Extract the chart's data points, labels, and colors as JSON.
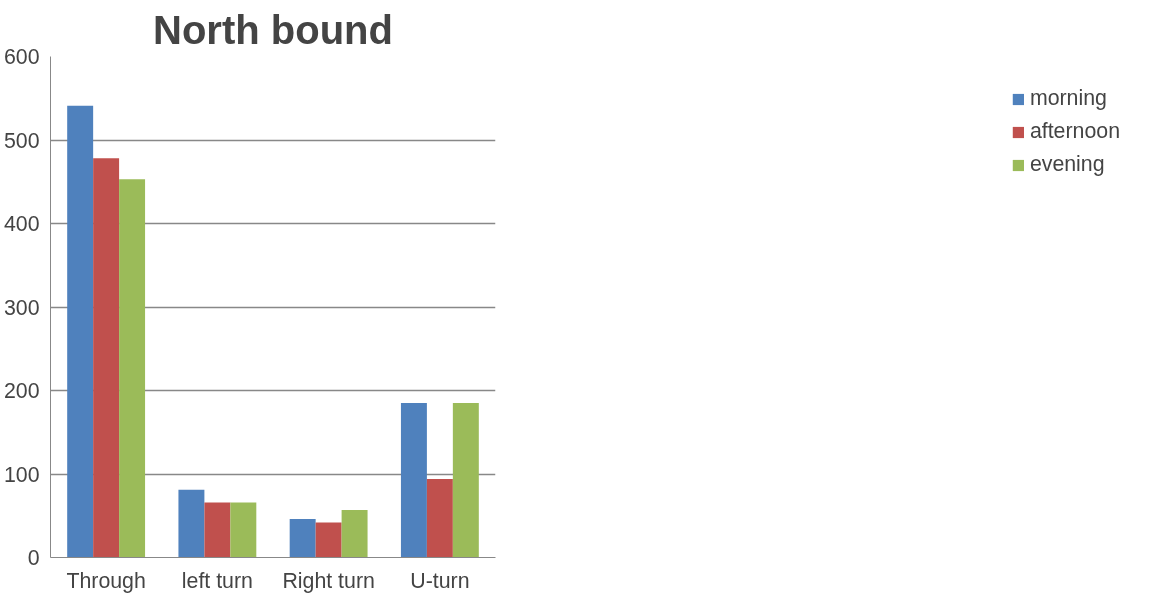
{
  "chart_data": {
    "type": "bar",
    "title": "North bound",
    "categories": [
      "Through",
      "left turn",
      "Right turn",
      "U-turn"
    ],
    "series": [
      {
        "name": "morning",
        "color": "#4f81bd",
        "values": [
          541,
          81,
          46,
          185
        ]
      },
      {
        "name": "afternoon",
        "color": "#c0504d",
        "values": [
          478,
          66,
          42,
          94
        ]
      },
      {
        "name": "evening",
        "color": "#9bbb59",
        "values": [
          453,
          66,
          57,
          185
        ]
      }
    ],
    "ylim": [
      0,
      600
    ],
    "yticks": [
      0,
      100,
      200,
      300,
      400,
      500,
      600
    ],
    "grid": "y",
    "legend": "right"
  }
}
